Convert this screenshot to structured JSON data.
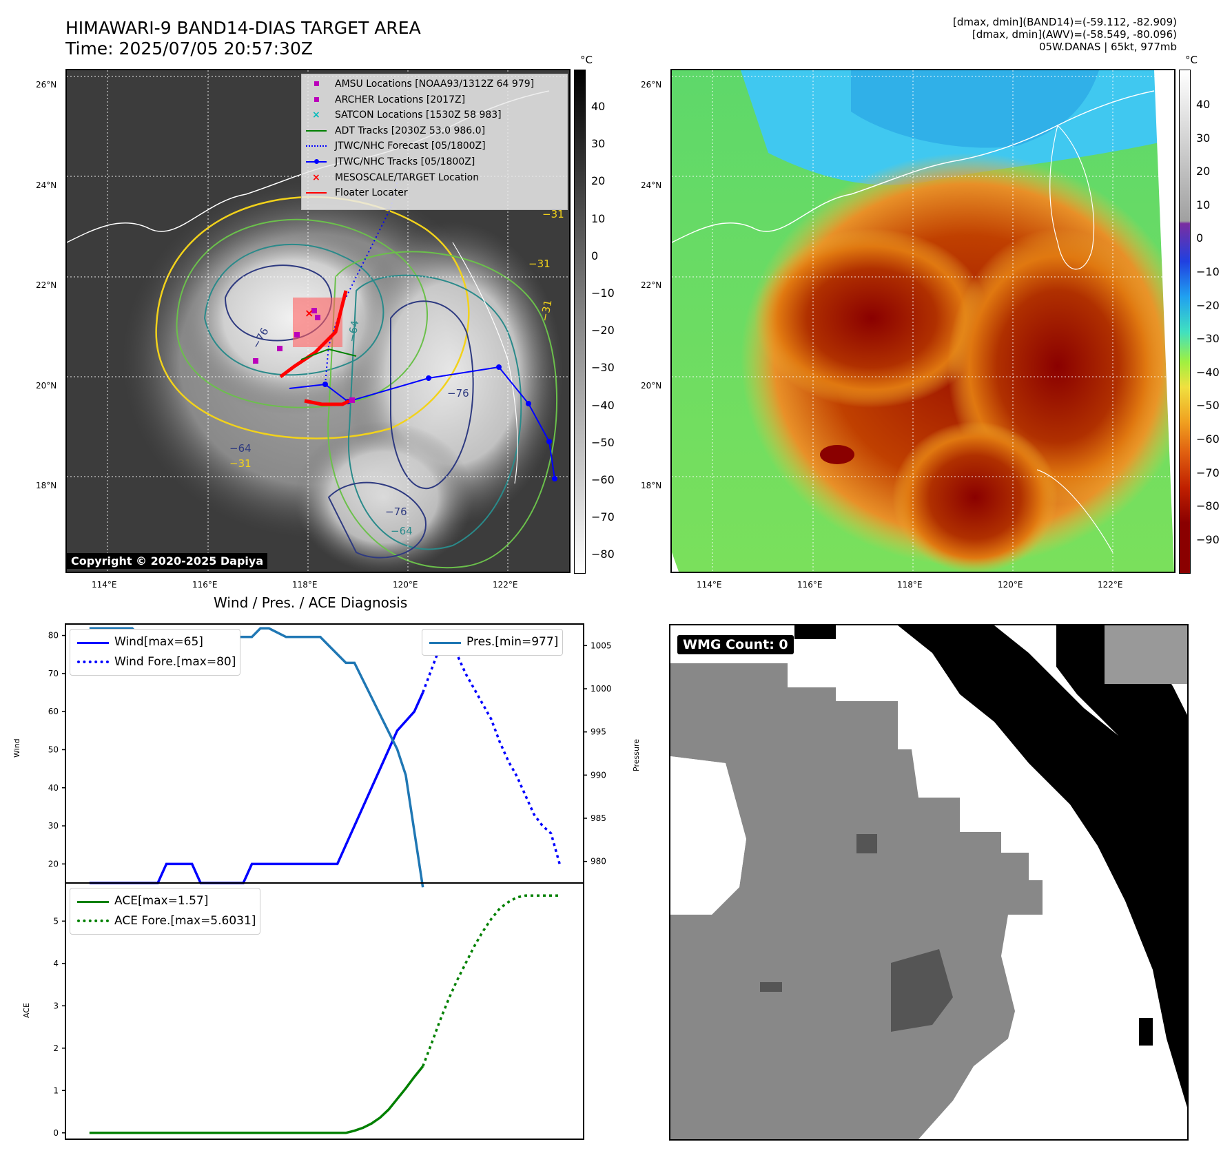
{
  "header": {
    "title_line1": "HIMAWARI-9 BAND14-DIAS TARGET AREA",
    "title_line2": "Time: 2025/07/05 20:57:30Z",
    "info_line1": "[dmax, dmin](BAND14)=(-59.112, -82.909)",
    "info_line2": "[dmax, dmin](AWV)=(-58.549, -80.096)",
    "info_line3": "05W.DANAS | 65kt, 977mb"
  },
  "map_left": {
    "lat_labels": [
      "26°N",
      "24°N",
      "22°N",
      "20°N",
      "18°N"
    ],
    "lon_labels": [
      "114°E",
      "116°E",
      "118°E",
      "120°E",
      "122°E"
    ],
    "colorbar_unit": "°C",
    "colorbar_ticks": [
      "40",
      "30",
      "20",
      "10",
      "0",
      "−10",
      "−20",
      "−30",
      "−40",
      "−50",
      "−60",
      "−70",
      "−80"
    ],
    "copyright": "Copyright © 2020-2025 Dapiya",
    "contour_labels": [
      "−76",
      "−64",
      "−76",
      "−31",
      "−31",
      "−31",
      "−64",
      "−31",
      "−76",
      "−64"
    ],
    "legend": [
      {
        "label": "AMSU Locations [NOAA93/1312Z 64 979]",
        "color": "#bb00bb",
        "marker": "square"
      },
      {
        "label": "ARCHER Locations [2017Z]",
        "color": "#bb00bb",
        "marker": "square"
      },
      {
        "label": "SATCON Locations [1530Z 58 983]",
        "color": "#00bbbb",
        "marker": "x"
      },
      {
        "label": "ADT Tracks [2030Z 53.0 986.0]",
        "color": "#008000",
        "marker": "line"
      },
      {
        "label": "JTWC/NHC Forecast [05/1800Z]",
        "color": "#0000ff",
        "marker": "dotted"
      },
      {
        "label": "JTWC/NHC Tracks [05/1800Z]",
        "color": "#0000ff",
        "marker": "line-dot"
      },
      {
        "label": "MESOSCALE/TARGET Location",
        "color": "#ff0000",
        "marker": "x"
      },
      {
        "label": "Floater Locater",
        "color": "#ff0000",
        "marker": "line"
      }
    ]
  },
  "map_right": {
    "lat_labels": [
      "26°N",
      "24°N",
      "22°N",
      "20°N",
      "18°N"
    ],
    "lon_labels": [
      "114°E",
      "116°E",
      "118°E",
      "120°E",
      "122°E"
    ],
    "colorbar_unit": "°C",
    "colorbar_ticks": [
      "40",
      "30",
      "20",
      "10",
      "0",
      "−10",
      "−20",
      "−30",
      "−40",
      "−50",
      "−60",
      "−70",
      "−80",
      "−90"
    ]
  },
  "wmg": {
    "badge": "WMG Count: 0"
  },
  "chart_data": [
    {
      "type": "line",
      "title": "Wind / Pres. / ACE Diagnosis",
      "ylabel": "Wind",
      "ylabel_right": "Pressure",
      "ylim": [
        15,
        83
      ],
      "ylim_right": [
        977.5,
        1007.5
      ],
      "yticks": [
        20,
        30,
        40,
        50,
        60,
        70,
        80
      ],
      "yticks_right": [
        980,
        985,
        990,
        995,
        1000,
        1005
      ],
      "x": [
        0,
        1,
        2,
        3,
        4,
        5,
        6,
        7,
        8,
        9,
        10,
        11,
        12,
        13,
        14,
        15,
        16,
        17,
        18,
        19,
        20,
        21,
        22,
        23,
        24,
        25,
        26,
        27,
        28,
        29,
        30,
        31,
        32,
        33,
        34,
        35,
        36,
        37,
        38,
        39,
        40,
        41,
        42,
        43,
        44,
        45,
        46,
        47,
        48,
        49,
        50,
        51,
        52,
        53,
        54,
        55
      ],
      "series": [
        {
          "name": "Wind[max=65]",
          "style": "solid",
          "color": "#0000ff",
          "axis": "left",
          "x": [
            0,
            8,
            9,
            12,
            13,
            14,
            18,
            19,
            20,
            29,
            30,
            32,
            34,
            36,
            38,
            39
          ],
          "values": [
            15,
            15,
            20,
            20,
            15,
            15,
            15,
            20,
            20,
            20,
            25,
            35,
            45,
            55,
            60,
            65
          ]
        },
        {
          "name": "Wind Fore.[max=80]",
          "style": "dotted",
          "color": "#0000ff",
          "axis": "left",
          "x": [
            39,
            41,
            42,
            43,
            44,
            45,
            46,
            47,
            48,
            49,
            50,
            51,
            52,
            53,
            54,
            55
          ],
          "values": [
            65,
            77,
            80,
            75,
            70,
            66,
            62,
            58,
            52,
            47,
            43,
            38,
            33,
            30,
            28,
            20
          ]
        },
        {
          "name": "Pres.[min=977]",
          "style": "solid",
          "color": "#1f77b4",
          "axis": "right",
          "x": [
            0,
            5,
            6,
            11,
            13,
            14,
            16,
            17,
            19,
            20,
            21,
            23,
            25,
            27,
            28,
            30,
            31,
            32,
            33,
            34,
            36,
            37,
            39
          ],
          "values": [
            1007,
            1007,
            1006,
            1006,
            1006,
            1006,
            1006,
            1006,
            1006,
            1007,
            1007,
            1006,
            1006,
            1006,
            1005,
            1003,
            1003,
            1001,
            999,
            997,
            993,
            990,
            977
          ]
        }
      ]
    },
    {
      "type": "line",
      "ylabel": "ACE",
      "ylim": [
        -0.15,
        5.9
      ],
      "yticks": [
        0,
        1,
        2,
        3,
        4,
        5
      ],
      "series": [
        {
          "name": "ACE[max=1.57]",
          "style": "solid",
          "color": "#008000",
          "x": [
            0,
            29,
            30,
            31,
            32,
            33,
            34,
            35,
            36,
            37,
            38,
            39
          ],
          "values": [
            0,
            0,
            0,
            0.05,
            0.12,
            0.22,
            0.36,
            0.55,
            0.8,
            1.05,
            1.32,
            1.57
          ]
        },
        {
          "name": "ACE Fore.[max=5.6031]",
          "style": "dotted",
          "color": "#008000",
          "x": [
            39,
            40,
            41,
            42,
            43,
            44,
            45,
            46,
            47,
            48,
            49,
            50,
            51,
            52,
            53,
            54,
            55
          ],
          "values": [
            1.57,
            2.1,
            2.65,
            3.15,
            3.6,
            4.0,
            4.4,
            4.75,
            5.05,
            5.3,
            5.45,
            5.56,
            5.6031,
            5.6031,
            5.6031,
            5.6031,
            5.6031
          ]
        }
      ]
    }
  ]
}
